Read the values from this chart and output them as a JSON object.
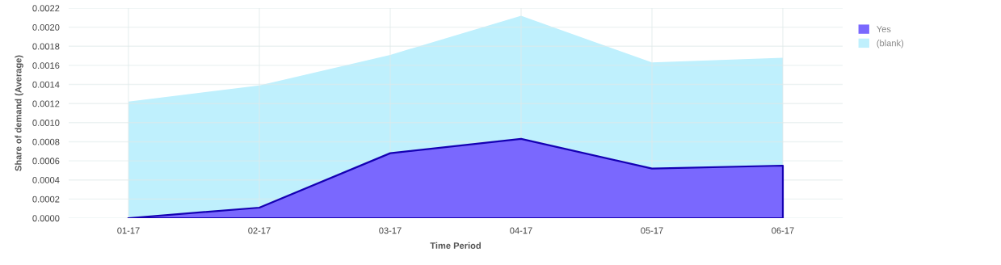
{
  "chart_data": {
    "type": "area",
    "xlabel": "Time Period",
    "ylabel": "Share of demand (Average)",
    "categories": [
      "01-17",
      "02-17",
      "03-17",
      "04-17",
      "05-17",
      "06-17"
    ],
    "series": [
      {
        "name": "(blank)",
        "color": "#bff0fd",
        "values": [
          0.00122,
          0.00139,
          0.00171,
          0.00212,
          0.00163,
          0.00168
        ]
      },
      {
        "name": "Yes",
        "color": "#7a68fe",
        "values": [
          0.0,
          0.00011,
          0.00068,
          0.00083,
          0.00052,
          0.00055
        ]
      }
    ],
    "ylim": [
      0,
      0.0022
    ],
    "yticks": [
      {
        "value": 0,
        "label": "0.0000"
      },
      {
        "value": 0.0002,
        "label": "0.0002"
      },
      {
        "value": 0.0004,
        "label": "0.0004"
      },
      {
        "value": 0.0006,
        "label": "0.0006"
      },
      {
        "value": 0.0008,
        "label": "0.0008"
      },
      {
        "value": 0.001,
        "label": "0.0010"
      },
      {
        "value": 0.0012,
        "label": "0.0012"
      },
      {
        "value": 0.0014,
        "label": "0.0014"
      },
      {
        "value": 0.0016,
        "label": "0.0016"
      },
      {
        "value": 0.0018,
        "label": "0.0018"
      },
      {
        "value": 0.002,
        "label": "0.0020"
      },
      {
        "value": 0.0022,
        "label": "0.0022"
      }
    ],
    "grid": true,
    "legend": "top right"
  }
}
